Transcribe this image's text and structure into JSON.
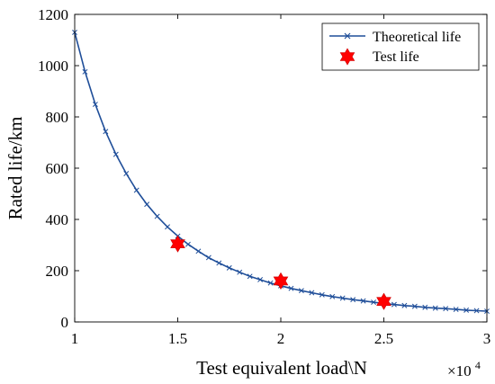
{
  "chart_data": {
    "type": "line",
    "title": "",
    "xlabel": "Test equivalent load\\N",
    "ylabel": "Rated life/km",
    "x_multiplier_label": "×10",
    "x_multiplier_exponent": "4",
    "xlim": [
      1,
      3
    ],
    "ylim": [
      0,
      1200
    ],
    "xticks": [
      1,
      1.5,
      2,
      2.5,
      3
    ],
    "xtick_labels": [
      "1",
      "1.5",
      "2",
      "2.5",
      "3"
    ],
    "yticks": [
      0,
      200,
      400,
      600,
      800,
      1000,
      1200
    ],
    "ytick_labels": [
      "0",
      "200",
      "400",
      "600",
      "800",
      "1000",
      "1200"
    ],
    "grid": false,
    "legend_position": "top-right",
    "series": [
      {
        "name": "Theoretical life",
        "style": "line-with-x-markers",
        "color": "#1f4e99",
        "x": [
          1.0,
          1.05,
          1.1,
          1.15,
          1.2,
          1.25,
          1.3,
          1.35,
          1.4,
          1.45,
          1.5,
          1.55,
          1.6,
          1.65,
          1.7,
          1.75,
          1.8,
          1.85,
          1.9,
          1.95,
          2.0,
          2.05,
          2.1,
          2.15,
          2.2,
          2.25,
          2.3,
          2.35,
          2.4,
          2.45,
          2.5,
          2.55,
          2.6,
          2.65,
          2.7,
          2.75,
          2.8,
          2.85,
          2.9,
          2.95,
          3.0
        ],
        "y": [
          1130,
          976,
          849,
          743,
          654,
          579,
          514,
          459,
          412,
          371,
          335,
          303,
          276,
          251,
          230,
          211,
          194,
          178,
          165,
          152,
          141,
          131,
          122,
          114,
          106,
          99,
          93,
          87,
          82,
          77,
          72,
          68,
          64,
          61,
          57,
          54,
          52,
          49,
          46,
          44,
          42
        ]
      },
      {
        "name": "Test life",
        "style": "star-markers",
        "color": "#ff0000",
        "x": [
          1.5,
          2.0,
          2.5
        ],
        "y": [
          305,
          160,
          80
        ]
      }
    ]
  }
}
